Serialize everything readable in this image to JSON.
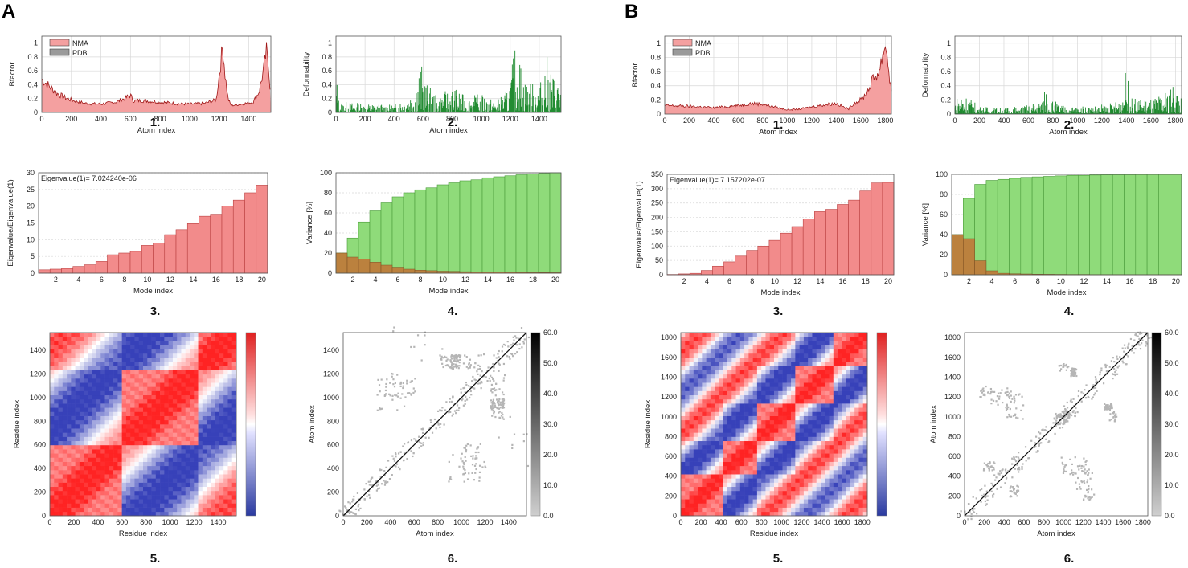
{
  "panels": [
    {
      "letter": "A",
      "charts": [
        {
          "num": "1.",
          "type": "area",
          "series": [
            {
              "name": "NMA",
              "color": "#e84a4a"
            },
            {
              "name": "PDB",
              "color": "#707070"
            }
          ],
          "xlabel": "Atom index",
          "ylabel": "Bfactor",
          "xlim": [
            0,
            1550
          ],
          "ylim": [
            0,
            1.1
          ],
          "xticks": [
            0,
            200,
            400,
            600,
            800,
            1000,
            1200,
            1400
          ],
          "yticks": [
            0,
            0.2,
            0.4,
            0.6,
            0.8,
            1
          ],
          "profile": [
            [
              0,
              0.48
            ],
            [
              50,
              0.38
            ],
            [
              100,
              0.28
            ],
            [
              150,
              0.22
            ],
            [
              200,
              0.18
            ],
            [
              300,
              0.13
            ],
            [
              400,
              0.12
            ],
            [
              500,
              0.15
            ],
            [
              560,
              0.2
            ],
            [
              600,
              0.25
            ],
            [
              620,
              0.17
            ],
            [
              700,
              0.17
            ],
            [
              800,
              0.15
            ],
            [
              900,
              0.13
            ],
            [
              1000,
              0.12
            ],
            [
              1100,
              0.13
            ],
            [
              1180,
              0.18
            ],
            [
              1210,
              0.7
            ],
            [
              1225,
              0.97
            ],
            [
              1240,
              0.55
            ],
            [
              1260,
              0.2
            ],
            [
              1280,
              0.1
            ],
            [
              1350,
              0.12
            ],
            [
              1430,
              0.15
            ],
            [
              1470,
              0.3
            ],
            [
              1500,
              0.6
            ],
            [
              1520,
              0.88
            ],
            [
              1540,
              0.55
            ],
            [
              1550,
              0.1
            ]
          ]
        },
        {
          "num": "2.",
          "type": "bar",
          "xlabel": "Atom index",
          "ylabel": "Deformability",
          "xlim": [
            0,
            1550
          ],
          "ylim": [
            0,
            1.1
          ],
          "xticks": [
            0,
            200,
            400,
            600,
            800,
            1000,
            1200,
            1400
          ],
          "yticks": [
            0,
            0.2,
            0.4,
            0.6,
            0.8,
            1
          ],
          "color": "#1e8a2e",
          "profile": [
            [
              0,
              0.6
            ],
            [
              20,
              0.15
            ],
            [
              200,
              0.12
            ],
            [
              400,
              0.1
            ],
            [
              540,
              0.3
            ],
            [
              580,
              0.72
            ],
            [
              620,
              0.4
            ],
            [
              700,
              0.2
            ],
            [
              800,
              0.35
            ],
            [
              900,
              0.2
            ],
            [
              1000,
              0.25
            ],
            [
              1100,
              0.15
            ],
            [
              1180,
              0.3
            ],
            [
              1210,
              0.6
            ],
            [
              1240,
              0.95
            ],
            [
              1300,
              0.45
            ],
            [
              1400,
              0.35
            ],
            [
              1450,
              0.75
            ],
            [
              1500,
              0.5
            ],
            [
              1550,
              0.45
            ]
          ]
        },
        {
          "num": "3.",
          "type": "bar",
          "xlabel": "Mode index",
          "ylabel": "Eigenvalue/Eigenvalue(1)",
          "annotation": "Eigenvalue(1)= 7.024240e-06",
          "categories": [
            1,
            2,
            3,
            4,
            5,
            6,
            7,
            8,
            9,
            10,
            11,
            12,
            13,
            14,
            15,
            16,
            17,
            18,
            19,
            20
          ],
          "values": [
            1,
            1.2,
            1.4,
            2,
            2.5,
            3.5,
            5.5,
            6,
            6.5,
            8.3,
            9,
            11.5,
            13,
            14.8,
            17,
            17.6,
            20,
            21.8,
            24,
            26.3
          ],
          "ylim": [
            0,
            30
          ],
          "yticks": [
            0,
            5,
            10,
            15,
            20,
            25,
            30
          ],
          "xticks": [
            2,
            4,
            6,
            8,
            10,
            12,
            14,
            16,
            18,
            20
          ],
          "color": "#f28b8b"
        },
        {
          "num": "4.",
          "type": "bar",
          "xlabel": "Mode index",
          "ylabel": "Variance [%]",
          "categories": [
            1,
            2,
            3,
            4,
            5,
            6,
            7,
            8,
            9,
            10,
            11,
            12,
            13,
            14,
            15,
            16,
            17,
            18,
            19,
            20
          ],
          "cumulative": [
            20,
            35,
            51,
            62,
            70,
            76,
            80,
            83,
            85,
            88,
            90,
            92,
            93,
            95,
            96,
            97,
            98,
            99,
            99.5,
            100
          ],
          "individual": [
            20,
            16,
            14,
            11,
            8,
            6,
            4,
            3,
            2.5,
            2,
            1.8,
            1.5,
            1.3,
            1.1,
            1,
            0.9,
            0.8,
            0.7,
            0.6,
            0.5
          ],
          "ylim": [
            0,
            100
          ],
          "yticks": [
            0,
            20,
            40,
            60,
            80,
            100
          ],
          "xticks": [
            2,
            4,
            6,
            8,
            10,
            12,
            14,
            16,
            18,
            20
          ],
          "colors": {
            "cumulative": "#8fdb7a",
            "individual": "#c07838"
          }
        },
        {
          "num": "5.",
          "type": "heatmap",
          "xlabel": "Residue index",
          "ylabel": "Residue index",
          "xlim": [
            0,
            1550
          ],
          "ylim": [
            0,
            1550
          ],
          "xticks": [
            0,
            200,
            400,
            600,
            800,
            1000,
            1200,
            1400
          ],
          "yticks": [
            0,
            200,
            400,
            600,
            800,
            1000,
            1200,
            1400
          ],
          "blocks": [
            [
              0,
              600
            ],
            [
              600,
              1220
            ],
            [
              1220,
              1550
            ]
          ]
        },
        {
          "num": "6.",
          "type": "scatter",
          "xlabel": "Atom index",
          "ylabel": "Atom index",
          "xlim": [
            0,
            1550
          ],
          "ylim": [
            0,
            1550
          ],
          "xticks": [
            0,
            200,
            400,
            600,
            800,
            1000,
            1200,
            1400
          ],
          "yticks": [
            0,
            200,
            400,
            600,
            800,
            1000,
            1200,
            1400
          ],
          "colorbar": [
            "60.0",
            "50.0",
            "40.0",
            "30.0",
            "20.0",
            "10.0",
            "0.0"
          ]
        }
      ]
    },
    {
      "letter": "B",
      "charts": [
        {
          "num": "1.",
          "type": "area",
          "series": [
            {
              "name": "NMA",
              "color": "#e84a4a"
            },
            {
              "name": "PDB",
              "color": "#707070"
            }
          ],
          "xlabel": "Atom index",
          "ylabel": "Bfactor",
          "xlim": [
            0,
            1850
          ],
          "ylim": [
            0,
            1.1
          ],
          "xticks": [
            0,
            200,
            400,
            600,
            800,
            1000,
            1200,
            1400,
            1600,
            1800
          ],
          "yticks": [
            0,
            0.2,
            0.4,
            0.6,
            0.8,
            1
          ],
          "profile": [
            [
              0,
              0.12
            ],
            [
              200,
              0.11
            ],
            [
              400,
              0.09
            ],
            [
              600,
              0.12
            ],
            [
              700,
              0.15
            ],
            [
              800,
              0.14
            ],
            [
              900,
              0.1
            ],
            [
              1000,
              0.06
            ],
            [
              1100,
              0.07
            ],
            [
              1200,
              0.1
            ],
            [
              1300,
              0.13
            ],
            [
              1400,
              0.15
            ],
            [
              1460,
              0.1
            ],
            [
              1500,
              0.07
            ],
            [
              1540,
              0.15
            ],
            [
              1600,
              0.2
            ],
            [
              1650,
              0.3
            ],
            [
              1700,
              0.5
            ],
            [
              1750,
              0.6
            ],
            [
              1780,
              0.85
            ],
            [
              1800,
              1.0
            ],
            [
              1820,
              0.75
            ],
            [
              1850,
              0.3
            ]
          ]
        },
        {
          "num": "2.",
          "type": "bar",
          "xlabel": "Atom index",
          "ylabel": "Deformability",
          "xlim": [
            0,
            1850
          ],
          "ylim": [
            0,
            1.1
          ],
          "xticks": [
            0,
            200,
            400,
            600,
            800,
            1000,
            1200,
            1400,
            1600,
            1800
          ],
          "yticks": [
            0,
            0.2,
            0.4,
            0.6,
            0.8,
            1
          ],
          "color": "#1e8a2e",
          "profile": [
            [
              0,
              0.2
            ],
            [
              60,
              0.3
            ],
            [
              200,
              0.1
            ],
            [
              400,
              0.08
            ],
            [
              600,
              0.12
            ],
            [
              700,
              0.18
            ],
            [
              740,
              0.45
            ],
            [
              780,
              0.2
            ],
            [
              900,
              0.1
            ],
            [
              1100,
              0.1
            ],
            [
              1300,
              0.15
            ],
            [
              1360,
              0.25
            ],
            [
              1400,
              0.6
            ],
            [
              1440,
              0.2
            ],
            [
              1600,
              0.2
            ],
            [
              1700,
              0.25
            ],
            [
              1780,
              0.4
            ],
            [
              1820,
              0.35
            ],
            [
              1850,
              0.2
            ]
          ]
        },
        {
          "num": "3.",
          "type": "bar",
          "xlabel": "Mode index",
          "ylabel": "Eigenvalue/Eigenvalue(1)",
          "annotation": "Eigenvalue(1)= 7.157202e-07",
          "categories": [
            1,
            2,
            3,
            4,
            5,
            6,
            7,
            8,
            9,
            10,
            11,
            12,
            13,
            14,
            15,
            16,
            17,
            18,
            19,
            20
          ],
          "values": [
            1,
            3,
            5,
            15,
            30,
            45,
            65,
            85,
            100,
            120,
            145,
            168,
            195,
            220,
            228,
            245,
            260,
            292,
            320,
            322
          ],
          "ylim": [
            0,
            350
          ],
          "yticks": [
            0,
            50,
            100,
            150,
            200,
            250,
            300,
            350
          ],
          "xticks": [
            2,
            4,
            6,
            8,
            10,
            12,
            14,
            16,
            18,
            20
          ],
          "color": "#f28b8b"
        },
        {
          "num": "4.",
          "type": "bar",
          "xlabel": "Mode index",
          "ylabel": "Variance [%]",
          "categories": [
            1,
            2,
            3,
            4,
            5,
            6,
            7,
            8,
            9,
            10,
            11,
            12,
            13,
            14,
            15,
            16,
            17,
            18,
            19,
            20
          ],
          "cumulative": [
            40,
            76,
            90,
            94,
            95,
            96,
            97,
            97.5,
            98,
            98.5,
            99,
            99,
            99.3,
            99.5,
            99.6,
            99.7,
            99.8,
            99.9,
            100,
            100
          ],
          "individual": [
            40,
            36,
            14,
            4,
            1.5,
            1,
            0.8,
            0.6,
            0.5,
            0.4,
            0.3,
            0.3,
            0.2,
            0.2,
            0.2,
            0.1,
            0.1,
            0.1,
            0.1,
            0.1
          ],
          "ylim": [
            0,
            100
          ],
          "yticks": [
            0,
            20,
            40,
            60,
            80,
            100
          ],
          "xticks": [
            2,
            4,
            6,
            8,
            10,
            12,
            14,
            16,
            18,
            20
          ],
          "colors": {
            "cumulative": "#8fdb7a",
            "individual": "#c07838"
          }
        },
        {
          "num": "5.",
          "type": "heatmap",
          "xlabel": "Residue index",
          "ylabel": "Residue index",
          "xlim": [
            0,
            1850
          ],
          "ylim": [
            0,
            1850
          ],
          "xticks": [
            0,
            200,
            400,
            600,
            800,
            1000,
            1200,
            1400,
            1600,
            1800
          ],
          "yticks": [
            0,
            200,
            400,
            600,
            800,
            1000,
            1200,
            1400,
            1600,
            1800
          ],
          "blocks": [
            [
              0,
              400
            ],
            [
              400,
              750
            ],
            [
              750,
              1150
            ],
            [
              1150,
              1500
            ],
            [
              1500,
              1850
            ]
          ]
        },
        {
          "num": "6.",
          "type": "scatter",
          "xlabel": "Atom index",
          "ylabel": "Atom index",
          "xlim": [
            0,
            1850
          ],
          "ylim": [
            0,
            1850
          ],
          "xticks": [
            0,
            200,
            400,
            600,
            800,
            1000,
            1200,
            1400,
            1600,
            1800
          ],
          "yticks": [
            0,
            200,
            400,
            600,
            800,
            1000,
            1200,
            1400,
            1600,
            1800
          ],
          "colorbar": [
            "60.0",
            "50.0",
            "40.0",
            "30.0",
            "20.0",
            "10.0",
            "0.0"
          ]
        }
      ]
    }
  ]
}
